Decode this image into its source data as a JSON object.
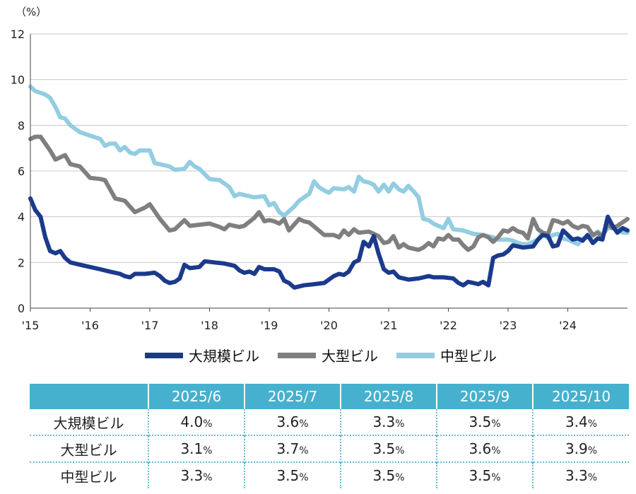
{
  "chart_data": {
    "type": "line",
    "unit_label": "（%）",
    "ylim": [
      0,
      12
    ],
    "yticks": [
      "0",
      "2",
      "4",
      "6",
      "8",
      "10",
      "12"
    ],
    "xticks": [
      "'15",
      "'16",
      "'17",
      "'18",
      "'19",
      "'20",
      "'21",
      "'22",
      "'23",
      "'24"
    ],
    "xlim": [
      2015.0,
      2025.0
    ],
    "grid": true,
    "legend_position": "bottom",
    "series": [
      {
        "name": "大規模ビル",
        "color": "#1b3a8c",
        "points": [
          [
            2015.0,
            4.8
          ],
          [
            2015.08,
            4.3
          ],
          [
            2015.17,
            4.0
          ],
          [
            2015.25,
            3.1
          ],
          [
            2015.33,
            2.5
          ],
          [
            2015.42,
            2.4
          ],
          [
            2015.5,
            2.5
          ],
          [
            2015.58,
            2.2
          ],
          [
            2015.67,
            2.0
          ],
          [
            2015.83,
            1.9
          ],
          [
            2016.0,
            1.8
          ],
          [
            2016.17,
            1.7
          ],
          [
            2016.33,
            1.6
          ],
          [
            2016.5,
            1.5
          ],
          [
            2016.58,
            1.4
          ],
          [
            2016.67,
            1.35
          ],
          [
            2016.75,
            1.5
          ],
          [
            2016.92,
            1.5
          ],
          [
            2017.08,
            1.55
          ],
          [
            2017.17,
            1.4
          ],
          [
            2017.25,
            1.2
          ],
          [
            2017.33,
            1.1
          ],
          [
            2017.42,
            1.15
          ],
          [
            2017.5,
            1.3
          ],
          [
            2017.58,
            1.9
          ],
          [
            2017.67,
            1.75
          ],
          [
            2017.83,
            1.8
          ],
          [
            2017.92,
            2.05
          ],
          [
            2018.08,
            2.0
          ],
          [
            2018.25,
            1.95
          ],
          [
            2018.42,
            1.85
          ],
          [
            2018.5,
            1.65
          ],
          [
            2018.58,
            1.55
          ],
          [
            2018.67,
            1.6
          ],
          [
            2018.75,
            1.5
          ],
          [
            2018.83,
            1.8
          ],
          [
            2018.92,
            1.7
          ],
          [
            2019.08,
            1.7
          ],
          [
            2019.17,
            1.6
          ],
          [
            2019.25,
            1.2
          ],
          [
            2019.33,
            1.1
          ],
          [
            2019.42,
            0.9
          ],
          [
            2019.58,
            1.0
          ],
          [
            2019.75,
            1.05
          ],
          [
            2019.92,
            1.1
          ],
          [
            2020.08,
            1.4
          ],
          [
            2020.17,
            1.5
          ],
          [
            2020.25,
            1.45
          ],
          [
            2020.33,
            1.6
          ],
          [
            2020.42,
            2.0
          ],
          [
            2020.5,
            2.1
          ],
          [
            2020.58,
            2.9
          ],
          [
            2020.67,
            2.7
          ],
          [
            2020.75,
            3.15
          ],
          [
            2020.83,
            2.4
          ],
          [
            2020.92,
            1.7
          ],
          [
            2021.0,
            1.55
          ],
          [
            2021.08,
            1.6
          ],
          [
            2021.17,
            1.35
          ],
          [
            2021.33,
            1.25
          ],
          [
            2021.5,
            1.3
          ],
          [
            2021.67,
            1.4
          ],
          [
            2021.75,
            1.35
          ],
          [
            2021.92,
            1.35
          ],
          [
            2022.08,
            1.3
          ],
          [
            2022.17,
            1.1
          ],
          [
            2022.25,
            1.0
          ],
          [
            2022.33,
            1.15
          ],
          [
            2022.42,
            1.1
          ],
          [
            2022.5,
            1.05
          ],
          [
            2022.58,
            1.15
          ],
          [
            2022.67,
            1.0
          ],
          [
            2022.75,
            2.2
          ],
          [
            2022.83,
            2.3
          ],
          [
            2022.92,
            2.35
          ],
          [
            2023.0,
            2.5
          ],
          [
            2023.08,
            2.75
          ],
          [
            2023.25,
            2.65
          ],
          [
            2023.42,
            2.7
          ],
          [
            2023.5,
            3.0
          ],
          [
            2023.58,
            3.2
          ],
          [
            2023.67,
            3.15
          ],
          [
            2023.75,
            2.7
          ],
          [
            2023.83,
            2.75
          ],
          [
            2023.92,
            3.4
          ],
          [
            2024.0,
            3.2
          ],
          [
            2024.08,
            3.0
          ],
          [
            2024.17,
            3.05
          ],
          [
            2024.25,
            2.95
          ],
          [
            2024.33,
            3.2
          ],
          [
            2024.42,
            2.85
          ],
          [
            2024.5,
            3.05
          ],
          [
            2024.58,
            3.0
          ],
          [
            2024.67,
            4.0
          ],
          [
            2024.75,
            3.6
          ],
          [
            2024.83,
            3.3
          ],
          [
            2024.92,
            3.5
          ],
          [
            2025.0,
            3.4
          ]
        ]
      },
      {
        "name": "大型ビル",
        "color": "#7f7f7f",
        "points": [
          [
            2015.0,
            7.4
          ],
          [
            2015.08,
            7.5
          ],
          [
            2015.17,
            7.5
          ],
          [
            2015.33,
            6.9
          ],
          [
            2015.42,
            6.5
          ],
          [
            2015.58,
            6.7
          ],
          [
            2015.67,
            6.3
          ],
          [
            2015.83,
            6.2
          ],
          [
            2016.0,
            5.7
          ],
          [
            2016.17,
            5.65
          ],
          [
            2016.25,
            5.6
          ],
          [
            2016.42,
            4.8
          ],
          [
            2016.58,
            4.7
          ],
          [
            2016.75,
            4.2
          ],
          [
            2016.92,
            4.4
          ],
          [
            2017.0,
            4.55
          ],
          [
            2017.17,
            3.9
          ],
          [
            2017.33,
            3.4
          ],
          [
            2017.42,
            3.45
          ],
          [
            2017.58,
            3.85
          ],
          [
            2017.67,
            3.6
          ],
          [
            2017.83,
            3.65
          ],
          [
            2018.0,
            3.7
          ],
          [
            2018.17,
            3.55
          ],
          [
            2018.25,
            3.45
          ],
          [
            2018.33,
            3.65
          ],
          [
            2018.5,
            3.55
          ],
          [
            2018.58,
            3.6
          ],
          [
            2018.75,
            3.95
          ],
          [
            2018.83,
            4.2
          ],
          [
            2018.92,
            3.8
          ],
          [
            2019.0,
            3.85
          ],
          [
            2019.08,
            3.8
          ],
          [
            2019.17,
            3.7
          ],
          [
            2019.25,
            3.9
          ],
          [
            2019.33,
            3.4
          ],
          [
            2019.5,
            3.9
          ],
          [
            2019.58,
            3.8
          ],
          [
            2019.67,
            3.75
          ],
          [
            2019.83,
            3.4
          ],
          [
            2019.92,
            3.2
          ],
          [
            2020.08,
            3.2
          ],
          [
            2020.17,
            3.1
          ],
          [
            2020.25,
            3.4
          ],
          [
            2020.33,
            3.2
          ],
          [
            2020.42,
            3.45
          ],
          [
            2020.5,
            3.3
          ],
          [
            2020.67,
            3.35
          ],
          [
            2020.83,
            3.15
          ],
          [
            2020.92,
            2.85
          ],
          [
            2021.0,
            2.9
          ],
          [
            2021.08,
            3.15
          ],
          [
            2021.17,
            2.65
          ],
          [
            2021.25,
            2.8
          ],
          [
            2021.33,
            2.65
          ],
          [
            2021.5,
            2.55
          ],
          [
            2021.58,
            2.65
          ],
          [
            2021.67,
            2.85
          ],
          [
            2021.75,
            2.7
          ],
          [
            2021.83,
            3.05
          ],
          [
            2021.92,
            3.0
          ],
          [
            2022.0,
            3.2
          ],
          [
            2022.08,
            3.0
          ],
          [
            2022.17,
            3.0
          ],
          [
            2022.25,
            2.75
          ],
          [
            2022.33,
            2.55
          ],
          [
            2022.42,
            2.7
          ],
          [
            2022.5,
            3.1
          ],
          [
            2022.58,
            3.2
          ],
          [
            2022.67,
            3.1
          ],
          [
            2022.75,
            2.9
          ],
          [
            2022.83,
            3.1
          ],
          [
            2022.92,
            3.4
          ],
          [
            2023.0,
            3.35
          ],
          [
            2023.08,
            3.5
          ],
          [
            2023.17,
            3.35
          ],
          [
            2023.25,
            3.3
          ],
          [
            2023.33,
            3.05
          ],
          [
            2023.42,
            3.9
          ],
          [
            2023.5,
            3.45
          ],
          [
            2023.58,
            3.3
          ],
          [
            2023.67,
            3.25
          ],
          [
            2023.75,
            3.85
          ],
          [
            2023.83,
            3.8
          ],
          [
            2023.92,
            3.7
          ],
          [
            2024.0,
            3.8
          ],
          [
            2024.08,
            3.6
          ],
          [
            2024.17,
            3.5
          ],
          [
            2024.25,
            3.6
          ],
          [
            2024.33,
            3.55
          ],
          [
            2024.42,
            3.2
          ],
          [
            2024.5,
            3.3
          ],
          [
            2024.58,
            3.1
          ],
          [
            2024.67,
            3.7
          ],
          [
            2024.75,
            3.5
          ],
          [
            2024.83,
            3.6
          ],
          [
            2025.0,
            3.9
          ]
        ]
      },
      {
        "name": "中型ビル",
        "color": "#93cde2",
        "points": [
          [
            2015.0,
            9.7
          ],
          [
            2015.08,
            9.5
          ],
          [
            2015.25,
            9.35
          ],
          [
            2015.33,
            9.2
          ],
          [
            2015.42,
            8.8
          ],
          [
            2015.5,
            8.35
          ],
          [
            2015.58,
            8.3
          ],
          [
            2015.67,
            8.0
          ],
          [
            2015.83,
            7.7
          ],
          [
            2016.0,
            7.55
          ],
          [
            2016.17,
            7.4
          ],
          [
            2016.25,
            7.1
          ],
          [
            2016.33,
            7.2
          ],
          [
            2016.42,
            7.2
          ],
          [
            2016.5,
            6.9
          ],
          [
            2016.58,
            7.05
          ],
          [
            2016.67,
            6.8
          ],
          [
            2016.75,
            6.75
          ],
          [
            2016.83,
            6.9
          ],
          [
            2017.0,
            6.9
          ],
          [
            2017.08,
            6.35
          ],
          [
            2017.25,
            6.25
          ],
          [
            2017.33,
            6.2
          ],
          [
            2017.42,
            6.05
          ],
          [
            2017.58,
            6.1
          ],
          [
            2017.67,
            6.4
          ],
          [
            2017.75,
            6.2
          ],
          [
            2017.83,
            6.1
          ],
          [
            2018.0,
            5.65
          ],
          [
            2018.17,
            5.6
          ],
          [
            2018.33,
            5.3
          ],
          [
            2018.42,
            4.9
          ],
          [
            2018.5,
            5.0
          ],
          [
            2018.58,
            4.95
          ],
          [
            2018.75,
            4.85
          ],
          [
            2018.92,
            4.9
          ],
          [
            2019.0,
            4.5
          ],
          [
            2019.08,
            4.6
          ],
          [
            2019.17,
            4.2
          ],
          [
            2019.25,
            4.05
          ],
          [
            2019.42,
            4.45
          ],
          [
            2019.5,
            4.7
          ],
          [
            2019.67,
            5.0
          ],
          [
            2019.75,
            5.55
          ],
          [
            2019.83,
            5.3
          ],
          [
            2019.92,
            5.15
          ],
          [
            2020.0,
            5.05
          ],
          [
            2020.08,
            5.25
          ],
          [
            2020.25,
            5.2
          ],
          [
            2020.33,
            5.3
          ],
          [
            2020.42,
            5.1
          ],
          [
            2020.5,
            5.75
          ],
          [
            2020.58,
            5.55
          ],
          [
            2020.67,
            5.5
          ],
          [
            2020.75,
            5.4
          ],
          [
            2020.83,
            5.1
          ],
          [
            2020.92,
            5.4
          ],
          [
            2021.0,
            5.1
          ],
          [
            2021.08,
            5.45
          ],
          [
            2021.17,
            5.2
          ],
          [
            2021.25,
            5.1
          ],
          [
            2021.33,
            5.35
          ],
          [
            2021.42,
            5.1
          ],
          [
            2021.5,
            4.85
          ],
          [
            2021.58,
            3.9
          ],
          [
            2021.67,
            3.85
          ],
          [
            2021.75,
            3.7
          ],
          [
            2021.83,
            3.6
          ],
          [
            2021.92,
            3.5
          ],
          [
            2022.0,
            3.9
          ],
          [
            2022.08,
            3.45
          ],
          [
            2022.25,
            3.4
          ],
          [
            2022.42,
            3.25
          ],
          [
            2022.58,
            3.2
          ],
          [
            2022.75,
            3.1
          ],
          [
            2022.83,
            3.0
          ],
          [
            2023.0,
            3.0
          ],
          [
            2023.08,
            2.95
          ],
          [
            2023.17,
            2.85
          ],
          [
            2023.25,
            2.8
          ],
          [
            2023.33,
            2.8
          ],
          [
            2023.5,
            3.0
          ],
          [
            2023.58,
            3.3
          ],
          [
            2023.67,
            3.05
          ],
          [
            2023.75,
            3.2
          ],
          [
            2023.83,
            3.25
          ],
          [
            2023.92,
            3.05
          ],
          [
            2024.0,
            3.0
          ],
          [
            2024.08,
            2.9
          ],
          [
            2024.17,
            2.8
          ],
          [
            2024.25,
            3.05
          ],
          [
            2024.33,
            3.1
          ],
          [
            2024.42,
            3.15
          ],
          [
            2024.5,
            3.35
          ],
          [
            2024.58,
            3.2
          ],
          [
            2024.67,
            3.5
          ],
          [
            2024.75,
            3.5
          ],
          [
            2024.83,
            3.55
          ],
          [
            2024.92,
            3.3
          ],
          [
            2025.0,
            3.3
          ]
        ]
      }
    ]
  },
  "table": {
    "headers": [
      "",
      "2025/6",
      "2025/7",
      "2025/8",
      "2025/9",
      "2025/10"
    ],
    "percent_sign": "%",
    "rows": [
      {
        "label": "大規模ビル",
        "values": [
          "4.0",
          "3.6",
          "3.3",
          "3.5",
          "3.4"
        ]
      },
      {
        "label": "大型ビル",
        "values": [
          "3.1",
          "3.7",
          "3.5",
          "3.6",
          "3.9"
        ]
      },
      {
        "label": "中型ビル",
        "values": [
          "3.3",
          "3.5",
          "3.5",
          "3.5",
          "3.3"
        ]
      }
    ]
  }
}
